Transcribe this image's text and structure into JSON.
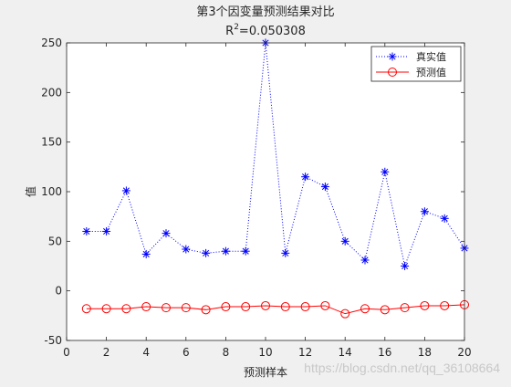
{
  "chart_data": {
    "type": "line",
    "title": "第3个因变量预测结果对比",
    "subtitle": "R²=0.050308",
    "subtitle_base": "R",
    "subtitle_sup": "2",
    "subtitle_rest": "=0.050308",
    "xlabel": "预测样本",
    "ylabel": "值",
    "xlim": [
      0,
      20
    ],
    "ylim": [
      -50,
      250
    ],
    "xticks": [
      0,
      2,
      4,
      6,
      8,
      10,
      12,
      14,
      16,
      18,
      20
    ],
    "yticks": [
      -50,
      0,
      50,
      100,
      150,
      200,
      250
    ],
    "grid": false,
    "legend_position": "top-right",
    "x": [
      1,
      2,
      3,
      4,
      5,
      6,
      7,
      8,
      9,
      10,
      11,
      12,
      13,
      14,
      15,
      16,
      17,
      18,
      19,
      20
    ],
    "series": [
      {
        "name": "真实值",
        "color": "#0000ff",
        "line_style": "dotted",
        "marker": "asterisk",
        "values": [
          60,
          60,
          101,
          37,
          58,
          42,
          38,
          40,
          40,
          250,
          38,
          115,
          105,
          50,
          31,
          120,
          25,
          80,
          73,
          43
        ]
      },
      {
        "name": "预测值",
        "color": "#ff0000",
        "line_style": "solid",
        "marker": "circle",
        "values": [
          -18,
          -18,
          -18,
          -16,
          -17,
          -17,
          -19,
          -16,
          -16,
          -15,
          -16,
          -16,
          -15,
          -23,
          -18,
          -19,
          -17,
          -15,
          -15,
          -14
        ]
      }
    ]
  },
  "watermark": "https://blog.csdn.net/qq_36108664"
}
